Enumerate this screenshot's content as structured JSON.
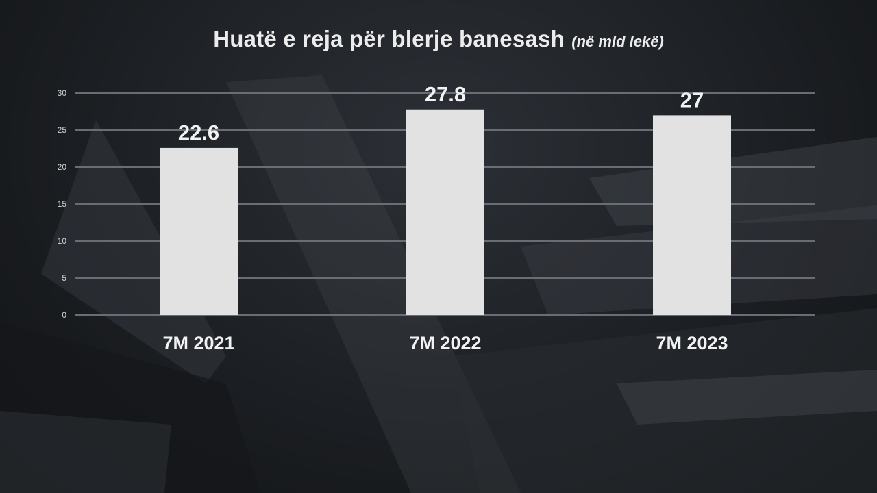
{
  "title": "Huatë e reja për blerje banesash",
  "subtitle": "(në mld lekë)",
  "colors": {
    "bar": "#e2e2e2",
    "grid": "#6a6e74",
    "text": "#f0f0f0"
  },
  "chart_data": {
    "type": "bar",
    "title": "Huatë e reja për blerje banesash (në mld lekë)",
    "categories": [
      "7M 2021",
      "7M 2022",
      "7M 2023"
    ],
    "values": [
      22.6,
      27.8,
      27
    ],
    "value_labels": [
      "22.6",
      "27.8",
      "27"
    ],
    "yticks": [
      "0",
      "5",
      "10",
      "15",
      "20",
      "25",
      "30"
    ],
    "ylim": [
      0,
      30
    ],
    "xlabel": "",
    "ylabel": "",
    "grid": true,
    "legend": "none"
  }
}
